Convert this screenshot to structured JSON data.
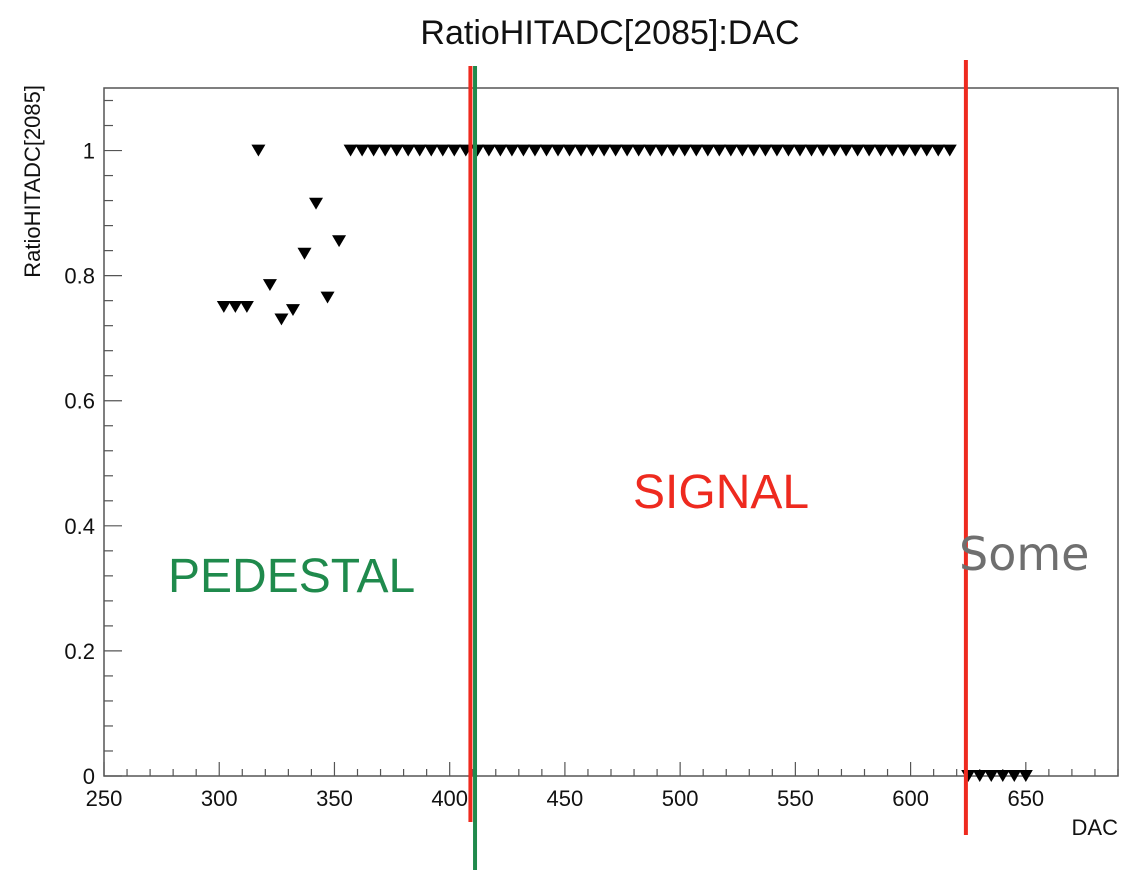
{
  "chart_data": {
    "type": "scatter",
    "title": "RatioHITADC[2085]:DAC",
    "xlabel": "DAC",
    "ylabel": "RatioHITADC[2085]",
    "xlim": [
      250,
      690
    ],
    "ylim": [
      0,
      1.1
    ],
    "x_ticks": [
      "250",
      "300",
      "350",
      "400",
      "450",
      "500",
      "550",
      "600",
      "650"
    ],
    "y_ticks": [
      "0",
      "0.2",
      "0.4",
      "0.6",
      "0.8",
      "1"
    ],
    "marker": "triangle-down",
    "series": [
      {
        "points": [
          [
            302,
            0.75
          ],
          [
            307,
            0.75
          ],
          [
            312,
            0.75
          ],
          [
            317,
            1.0
          ],
          [
            322,
            0.785
          ],
          [
            327,
            0.73
          ],
          [
            332,
            0.745
          ],
          [
            337,
            0.835
          ],
          [
            342,
            0.915
          ],
          [
            347,
            0.765
          ],
          [
            352,
            0.855
          ],
          [
            357,
            1.0
          ],
          [
            362,
            1.0
          ],
          [
            367,
            1.0
          ],
          [
            372,
            1.0
          ],
          [
            377,
            1.0
          ],
          [
            382,
            1.0
          ],
          [
            387,
            1.0
          ],
          [
            392,
            1.0
          ],
          [
            397,
            1.0
          ],
          [
            402,
            1.0
          ],
          [
            407,
            1.0
          ],
          [
            412,
            1.0
          ],
          [
            417,
            1.0
          ],
          [
            422,
            1.0
          ],
          [
            427,
            1.0
          ],
          [
            432,
            1.0
          ],
          [
            437,
            1.0
          ],
          [
            442,
            1.0
          ],
          [
            447,
            1.0
          ],
          [
            452,
            1.0
          ],
          [
            457,
            1.0
          ],
          [
            462,
            1.0
          ],
          [
            467,
            1.0
          ],
          [
            472,
            1.0
          ],
          [
            477,
            1.0
          ],
          [
            482,
            1.0
          ],
          [
            487,
            1.0
          ],
          [
            492,
            1.0
          ],
          [
            497,
            1.0
          ],
          [
            502,
            1.0
          ],
          [
            507,
            1.0
          ],
          [
            512,
            1.0
          ],
          [
            517,
            1.0
          ],
          [
            522,
            1.0
          ],
          [
            527,
            1.0
          ],
          [
            532,
            1.0
          ],
          [
            537,
            1.0
          ],
          [
            542,
            1.0
          ],
          [
            547,
            1.0
          ],
          [
            552,
            1.0
          ],
          [
            557,
            1.0
          ],
          [
            562,
            1.0
          ],
          [
            567,
            1.0
          ],
          [
            572,
            1.0
          ],
          [
            577,
            1.0
          ],
          [
            582,
            1.0
          ],
          [
            587,
            1.0
          ],
          [
            592,
            1.0
          ],
          [
            597,
            1.0
          ],
          [
            602,
            1.0
          ],
          [
            607,
            1.0
          ],
          [
            612,
            1.0
          ],
          [
            617,
            1.0
          ],
          [
            625,
            0.0
          ],
          [
            630,
            0.0
          ],
          [
            635,
            0.0
          ],
          [
            640,
            0.0
          ],
          [
            645,
            0.0
          ],
          [
            650,
            0.0
          ]
        ]
      }
    ],
    "vertical_lines": [
      {
        "x": 409,
        "color": "#ee2a1f"
      },
      {
        "x": 411,
        "color": "#1f8a4c"
      },
      {
        "x": 624,
        "color": "#ee2a1f"
      }
    ],
    "annotations": [
      {
        "text": "PEDESTAL",
        "color": "#1f8a4c"
      },
      {
        "text": "SIGNAL",
        "color": "#ee2a1f"
      },
      {
        "text": "Some",
        "color": "#6f6f6f"
      }
    ],
    "grid": false
  }
}
